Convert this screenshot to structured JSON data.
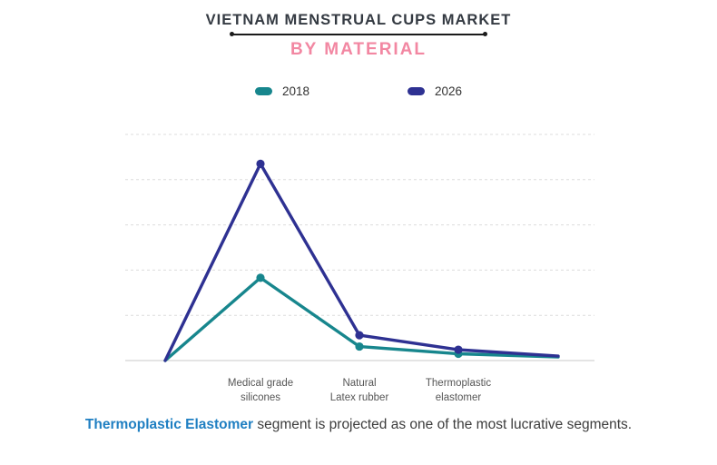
{
  "header": {
    "title": "VIETNAM MENSTRUAL CUPS MARKET",
    "title_color": "#343a42",
    "subtitle": "BY MATERIAL",
    "subtitle_color": "#f287a2"
  },
  "legend": {
    "items": [
      {
        "label": "2018",
        "color": "#17868d"
      },
      {
        "label": "2026",
        "color": "#2e3192"
      }
    ]
  },
  "chart_data": {
    "type": "line",
    "title": "VIETNAM MENSTRUAL CUPS MARKET",
    "subtitle": "BY MATERIAL",
    "categories": [
      "Medical grade\nsilicones",
      "Natural\nLatex rubber",
      "Thermoplastic\nelastomer"
    ],
    "series": [
      {
        "name": "2018",
        "color": "#17868d",
        "values": [
          1.83,
          0.31,
          0.15
        ],
        "render_points": [
          0,
          1.83,
          0.31,
          0.15,
          0.08
        ]
      },
      {
        "name": "2026",
        "color": "#2e3192",
        "values": [
          4.35,
          0.56,
          0.24
        ],
        "render_points": [
          0,
          4.35,
          0.56,
          0.24,
          0.1
        ]
      }
    ],
    "xlabel": "",
    "ylabel": "",
    "y_axis_tick_labels": "none (unlabeled axis, values estimated in gridline units)",
    "ylim": [
      0,
      5
    ],
    "gridline_count": 6,
    "grid_style": "dashed horizontal, solid baseline",
    "grid_color": "#dcdcdc",
    "legend_position": "top center"
  },
  "caption": {
    "highlight": "Thermoplastic Elastomer",
    "highlight_color": "#1f7fc2",
    "text": " segment is projected as one of the most lucrative segments."
  }
}
